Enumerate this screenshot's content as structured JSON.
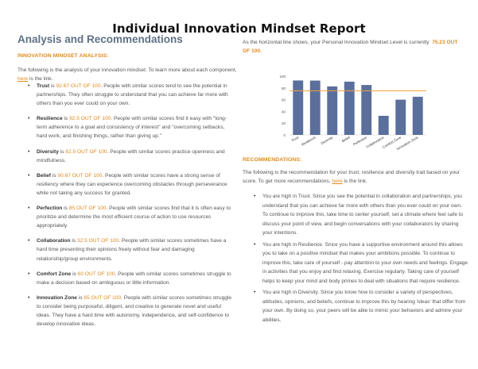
{
  "report_title": "Individual Innovation Mindset Report",
  "section_title": "Analysis and Recommendations",
  "analysis": {
    "heading": "INNOVATION MINDSET ANALYSIS:",
    "intro_before_link": "The following is the analysis of your innovation mindset. To learn more about each component,",
    "intro_link": "here",
    "intro_after_link": "is the link.",
    "items": [
      {
        "name": "Trust",
        "score": "92.67 OUT OF 100",
        "text": "People with similar scores tend to see the potential in partnerships. They often struggle to understand that you can achieve far more with others than you ever could on your own."
      },
      {
        "name": "Resilience",
        "score": "92.5 OUT OF 100",
        "text": "People with similar scores find it easy with \"long-term adherence to a goal and consistency of interest\" and \"overcoming setbacks, hard work, and finishing things, rather than giving up.\""
      },
      {
        "name": "Diversity",
        "score": "82.5 OUT OF 100",
        "text": "People with similar scores practice openness and mindfulness."
      },
      {
        "name": "Belief",
        "score": "90.67 OUT OF 100",
        "text": "People with similar scores have a strong sense of resiliency where they can experience overcoming obstacles through perseverance while not taking any success for granted."
      },
      {
        "name": "Perfection",
        "score": "85 OUT OF 100",
        "text": "People with similar scores find that it is often easy to prioritize and determine the most efficient course of action to use resources appropriately."
      },
      {
        "name": "Collaboration",
        "score": "32.5 OUT OF 100",
        "text": "People with similar scores sometimes have a hard time presenting their opinions freely without fear and damaging relationship/group environments."
      },
      {
        "name": "Comfort Zone",
        "score": "60 OUT OF 100",
        "text": "People with similar scores sometimes struggle to make a decision based on ambiguous or little information."
      },
      {
        "name": "Innovation Zone",
        "score": "65 OUT OF 100",
        "text": "People with similar scores sometimes struggle to consider being purposeful, diligent, and creative to generate novel and useful ideas. They have a hard time with autonomy, independence, and self-confidence to develop innovative ideas."
      }
    ]
  },
  "level": {
    "text": "As the horizontal line shows, your Personal Innovation Mindset Level is currently",
    "value": "75.23 OUT OF 100."
  },
  "chart_data": {
    "type": "bar",
    "categories": [
      "Trust",
      "Resilience",
      "Diversity",
      "Belief",
      "Perfection",
      "Collaboration",
      "Comfort Zone",
      "Innovation Zone"
    ],
    "values": [
      92.67,
      92.5,
      82.5,
      90.67,
      85,
      32.5,
      60,
      65
    ],
    "reference_line": 75.23,
    "ylim": [
      0,
      100
    ],
    "yticks": [
      "0",
      "20",
      "40",
      "60",
      "80",
      "100"
    ],
    "bar_color": "#5b6f9c",
    "line_color": "#f0a040",
    "grid": false,
    "title": "",
    "xlabel": "",
    "ylabel": ""
  },
  "recommendations": {
    "heading": "RECOMMENDATIONS:",
    "intro_before_link": "The following is the recommendation for your trust, resilience and diversity trait based on your score. To get more recommendations,",
    "intro_link": "here",
    "intro_after_link": "is the link.",
    "items": [
      "You are high in Trust. Since you see the potential in collaboration and partnerships, you understand that you can achieve far more with others than you ever could on your own. To continue to improve this, take time to center yourself, set a climate where feel safe to discuss your point of view, and begin conversations with your collaborators by sharing your intentions.",
      "You are high in Resilience. Since you have a supportive environment around this allows you to take on a positive mindset that makes your ambitions possible. To continue to improve this, take care of yourself - pay attention to your own needs and feelings. Engage in activities that you enjoy and find relaxing. Exercise regularly. Taking care of yourself helps to keep your mind and body primes to deal with situations that require resilience.",
      "You are high in Diversity. Since you know how to consider a variety of perspectives, attitudes, opinions, and beliefs, continue to improve this by hearing 'ideas' that differ from your own. By doing so, your peers will be able to mimic your behaviors and admire your abilities."
    ]
  }
}
